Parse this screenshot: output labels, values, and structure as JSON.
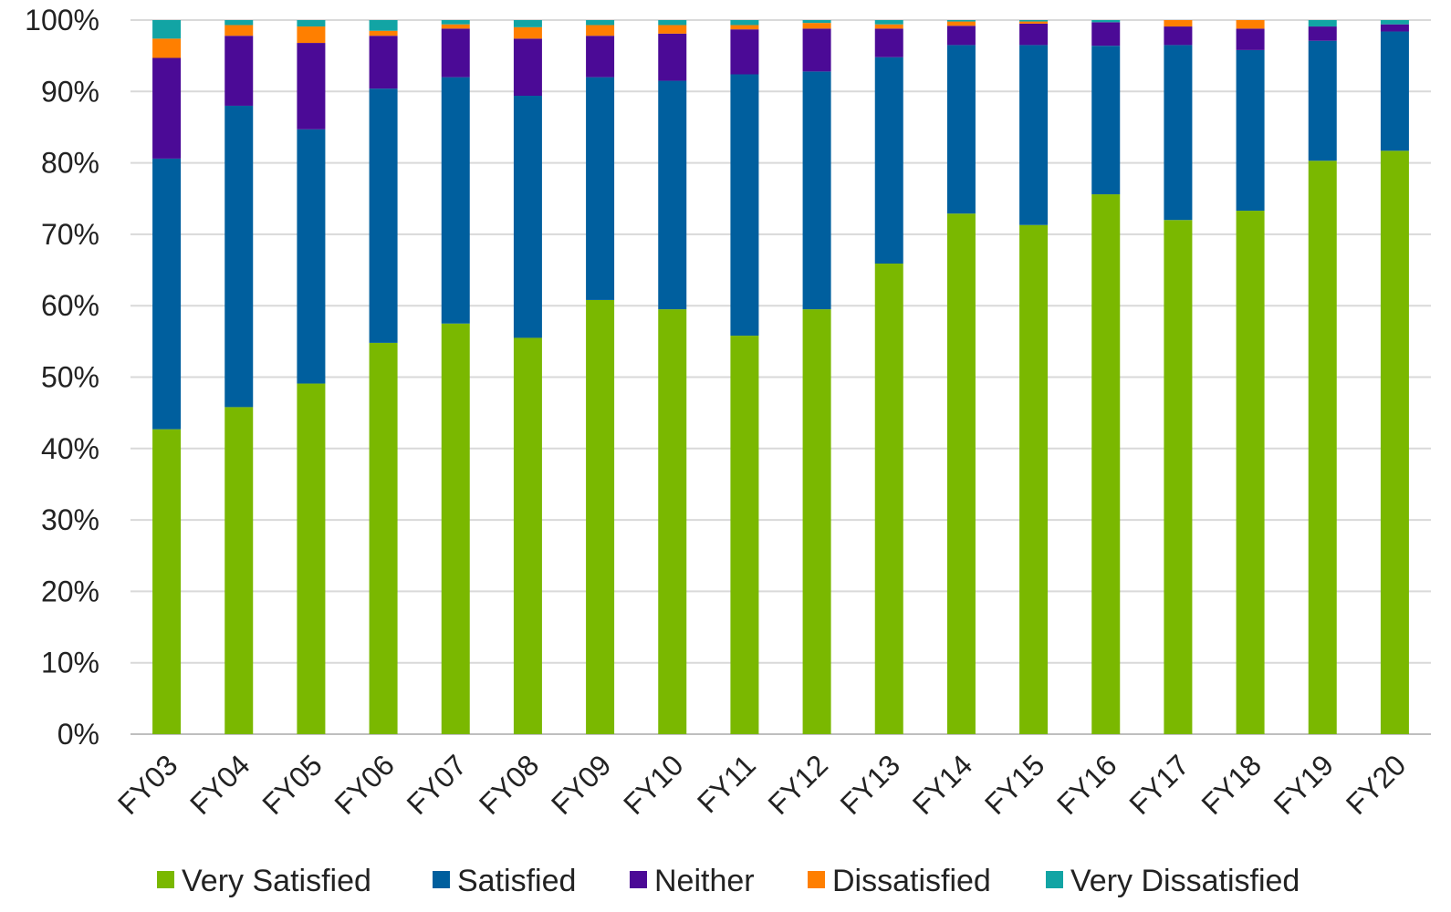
{
  "chart_data": {
    "type": "bar",
    "stacked": true,
    "title": "",
    "xlabel": "",
    "ylabel": "",
    "ylim": [
      0,
      100
    ],
    "y_ticks": [
      "0%",
      "10%",
      "20%",
      "30%",
      "40%",
      "50%",
      "60%",
      "70%",
      "80%",
      "90%",
      "100%"
    ],
    "grid": true,
    "legend_position": "bottom",
    "categories": [
      "FY03",
      "FY04",
      "FY05",
      "FY06",
      "FY07",
      "FY08",
      "FY09",
      "FY10",
      "FY11",
      "FY12",
      "FY13",
      "FY14",
      "FY15",
      "FY16",
      "FY17",
      "FY18",
      "FY19",
      "FY20"
    ],
    "series": [
      {
        "name": "Very Satisfied",
        "color": "#7ab800",
        "values": [
          42.7,
          45.8,
          49.1,
          54.8,
          57.5,
          55.5,
          60.8,
          59.5,
          55.8,
          59.5,
          65.9,
          72.9,
          71.3,
          75.6,
          72.0,
          73.3,
          80.3,
          81.7
        ]
      },
      {
        "name": "Satisfied",
        "color": "#005f9e",
        "values": [
          37.9,
          42.2,
          35.6,
          35.6,
          34.5,
          33.9,
          31.2,
          32.0,
          36.6,
          33.3,
          28.9,
          23.6,
          25.2,
          20.8,
          24.5,
          22.5,
          16.8,
          16.7
        ]
      },
      {
        "name": "Neither",
        "color": "#4b0a96",
        "values": [
          14.1,
          9.8,
          12.1,
          7.4,
          6.8,
          8.0,
          5.8,
          6.6,
          6.3,
          6.0,
          4.0,
          2.7,
          3.0,
          3.3,
          2.6,
          3.0,
          2.0,
          1.0
        ]
      },
      {
        "name": "Dissatisfied",
        "color": "#ff7f00",
        "values": [
          2.7,
          1.5,
          2.3,
          0.7,
          0.6,
          1.6,
          1.5,
          1.2,
          0.6,
          0.8,
          0.6,
          0.6,
          0.3,
          0.0,
          0.9,
          1.2,
          0.0,
          0.0
        ]
      },
      {
        "name": "Very Dissatisfied",
        "color": "#12a4a4",
        "values": [
          2.6,
          0.7,
          0.9,
          1.5,
          0.6,
          1.0,
          0.7,
          0.7,
          0.7,
          0.4,
          0.6,
          0.2,
          0.2,
          0.3,
          0.0,
          0.0,
          0.9,
          0.6
        ]
      }
    ]
  }
}
